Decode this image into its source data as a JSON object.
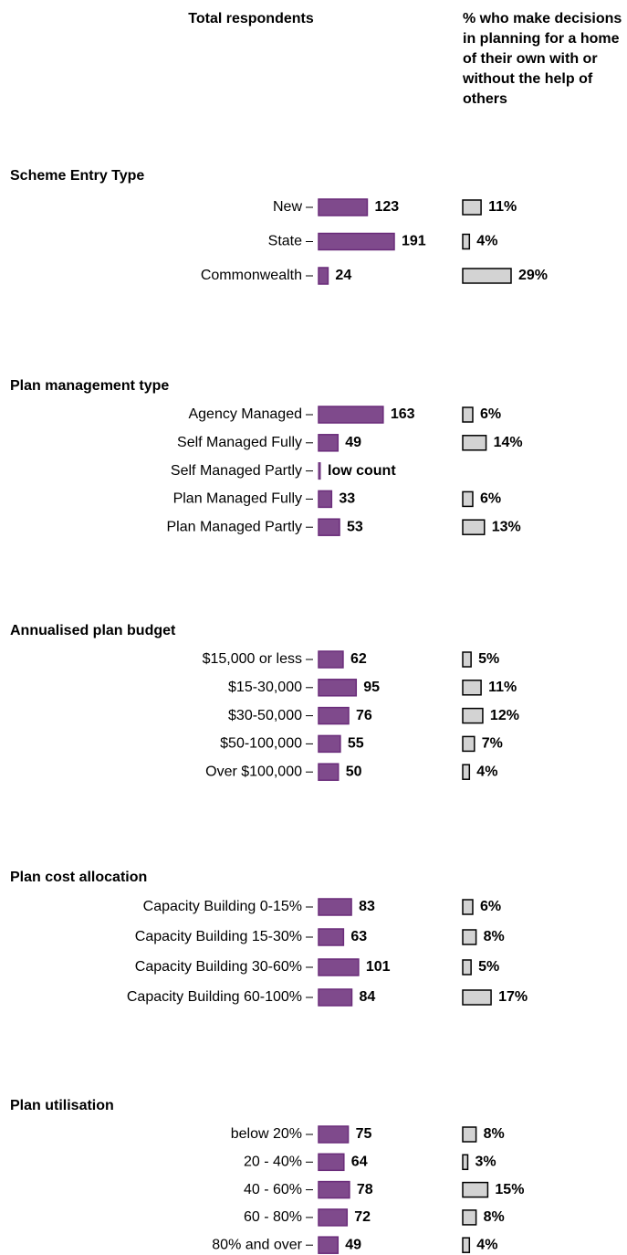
{
  "chart_data": {
    "type": "bar",
    "columns": [
      "Total respondents",
      "% who make decisions in planning for a home of their own with or without the help of others"
    ],
    "sections": [
      {
        "title": "Scheme Entry Type",
        "categories": [
          "New",
          "State",
          "Commonwealth"
        ],
        "series": [
          {
            "color": "#7f4a8c",
            "values": [
              123,
              191,
              24
            ]
          },
          {
            "color": "#d3d3d3",
            "values": [
              11,
              4,
              29
            ],
            "value_labels": [
              "11%",
              "4%",
              "29%"
            ]
          }
        ]
      },
      {
        "title": "Plan management type",
        "categories": [
          "Agency Managed",
          "Self Managed Fully",
          "Self Managed Partly",
          "Plan Managed Fully",
          "Plan Managed Partly"
        ],
        "series": [
          {
            "color": "#7f4a8c",
            "values": [
              163,
              49,
              null,
              33,
              53
            ],
            "value_labels": [
              null,
              null,
              "low count",
              null,
              null
            ]
          },
          {
            "color": "#d3d3d3",
            "values": [
              6,
              14,
              null,
              6,
              13
            ],
            "value_labels": [
              "6%",
              "14%",
              null,
              "6%",
              "13%"
            ]
          }
        ]
      },
      {
        "title": "Annualised plan budget",
        "categories": [
          "$15,000 or less",
          "$15-30,000",
          "$30-50,000",
          "$50-100,000",
          "Over $100,000"
        ],
        "series": [
          {
            "color": "#7f4a8c",
            "values": [
              62,
              95,
              76,
              55,
              50
            ]
          },
          {
            "color": "#d3d3d3",
            "values": [
              5,
              11,
              12,
              7,
              4
            ],
            "value_labels": [
              "5%",
              "11%",
              "12%",
              "7%",
              "4%"
            ]
          }
        ]
      },
      {
        "title": "Plan cost allocation",
        "categories": [
          "Capacity Building 0-15%",
          "Capacity Building 15-30%",
          "Capacity Building 30-60%",
          "Capacity Building 60-100%"
        ],
        "series": [
          {
            "color": "#7f4a8c",
            "values": [
              83,
              63,
              101,
              84
            ]
          },
          {
            "color": "#d3d3d3",
            "values": [
              6,
              8,
              5,
              17
            ],
            "value_labels": [
              "6%",
              "8%",
              "5%",
              "17%"
            ]
          }
        ]
      },
      {
        "title": "Plan utilisation",
        "categories": [
          "below 20%",
          "20 - 40%",
          "40 - 60%",
          "60 - 80%",
          "80% and over"
        ],
        "series": [
          {
            "color": "#7f4a8c",
            "values": [
              75,
              64,
              78,
              72,
              49
            ]
          },
          {
            "color": "#d3d3d3",
            "values": [
              8,
              3,
              15,
              8,
              4
            ],
            "value_labels": [
              "8%",
              "3%",
              "15%",
              "8%",
              "4%"
            ]
          }
        ]
      }
    ]
  }
}
